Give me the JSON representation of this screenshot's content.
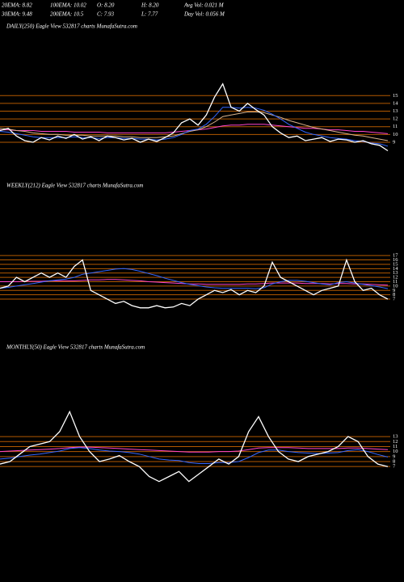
{
  "header": {
    "rows": [
      [
        "20EMA: 8.82",
        "100EMA: 10.02",
        "O: 8.20",
        "H: 8.20",
        "Avg Vol: 0.021 M"
      ],
      [
        "30EMA: 9.48",
        "200EMA: 10.5",
        "C: 7.93",
        "L: 7.77",
        "Day Vol: 0.056 M"
      ]
    ]
  },
  "chart_data": [
    {
      "type": "line",
      "title": "DAILY(250) Eagle  View  532817 charts MunafaSutra.com",
      "ylim": [
        6.5,
        16.9
      ],
      "yticks": [
        15,
        14,
        13,
        12,
        11,
        10,
        9
      ],
      "grid": true,
      "grid_color": "#b35900",
      "series": [
        {
          "color": "#ff44cc",
          "values": [
            10.6,
            10.6,
            10.5,
            10.5,
            10.5,
            10.4,
            10.4,
            10.4,
            10.4,
            10.3,
            10.3,
            10.3,
            10.3,
            10.2,
            10.2,
            10.2,
            10.2,
            10.2,
            10.2,
            10.2,
            10.2,
            10.3,
            10.4,
            10.5,
            10.6,
            10.7,
            10.9,
            11.1,
            11.2,
            11.2,
            11.3,
            11.3,
            11.3,
            11.2,
            11.1,
            11.0,
            10.9,
            10.8,
            10.8,
            10.7,
            10.6,
            10.6,
            10.5,
            10.4,
            10.4,
            10.3,
            10.2,
            10.1
          ]
        },
        {
          "color": "#d9b38c",
          "values": [
            10.8,
            10.7,
            10.5,
            10.4,
            10.2,
            10.1,
            10.0,
            10.0,
            9.9,
            9.9,
            9.9,
            9.8,
            9.8,
            9.8,
            9.8,
            9.7,
            9.7,
            9.6,
            9.6,
            9.6,
            9.7,
            9.8,
            10.1,
            10.4,
            10.6,
            11.0,
            11.6,
            12.3,
            12.5,
            12.7,
            12.9,
            12.9,
            12.8,
            12.5,
            12.2,
            11.8,
            11.5,
            11.2,
            10.9,
            10.7,
            10.5,
            10.3,
            10.1,
            9.9,
            9.8,
            9.6,
            9.4,
            9.2
          ]
        },
        {
          "color": "#3366ff",
          "values": [
            10.4,
            10.3,
            10.1,
            9.9,
            9.7,
            9.6,
            9.6,
            9.6,
            9.6,
            9.7,
            9.6,
            9.6,
            9.5,
            9.6,
            9.6,
            9.5,
            9.5,
            9.4,
            9.4,
            9.3,
            9.4,
            9.6,
            10.0,
            10.5,
            10.7,
            11.3,
            12.3,
            13.5,
            13.5,
            13.4,
            13.5,
            13.4,
            13.1,
            12.6,
            12.0,
            11.3,
            10.8,
            10.3,
            10.0,
            9.8,
            9.6,
            9.5,
            9.4,
            9.2,
            9.1,
            8.9,
            8.8,
            8.5
          ]
        },
        {
          "color": "#ffffff",
          "values": [
            10.5,
            10.8,
            9.8,
            9.2,
            9.0,
            9.6,
            9.3,
            9.8,
            9.5,
            10.0,
            9.4,
            9.7,
            9.2,
            9.8,
            9.6,
            9.3,
            9.5,
            9.0,
            9.4,
            9.1,
            9.6,
            10.2,
            11.5,
            12.0,
            11.2,
            12.5,
            14.8,
            16.5,
            13.5,
            13.0,
            14.0,
            13.2,
            12.5,
            11.0,
            10.2,
            9.6,
            9.8,
            9.2,
            9.4,
            9.6,
            9.1,
            9.4,
            9.3,
            9.0,
            9.2,
            8.8,
            8.6,
            7.9
          ]
        }
      ]
    },
    {
      "type": "line",
      "title": "WEEKLY(212) Eagle  View  532817 charts MunafaSutra.com",
      "ylim": [
        3.3,
        20
      ],
      "yticks": [
        17,
        16,
        15,
        14,
        13,
        12,
        11,
        10,
        9,
        8,
        7
      ],
      "grid": true,
      "grid_color": "#b35900",
      "series": [
        {
          "color": "#ff44cc",
          "values": [
            11.0,
            11.0,
            11.0,
            11.1,
            11.1,
            11.1,
            11.2,
            11.2,
            11.2,
            11.2,
            11.3,
            11.4,
            11.4,
            11.5,
            11.5,
            11.4,
            11.3,
            11.2,
            11.0,
            10.9,
            10.8,
            10.7,
            10.6,
            10.5,
            10.5,
            10.4,
            10.4,
            10.4,
            10.4,
            10.4,
            10.5,
            10.5,
            10.6,
            10.7,
            10.7,
            10.7,
            10.7,
            10.6,
            10.6,
            10.6,
            10.5,
            10.6,
            10.6,
            10.5,
            10.5,
            10.4,
            10.3,
            10.2
          ]
        },
        {
          "color": "#3366ff",
          "values": [
            9.5,
            9.7,
            10.0,
            10.3,
            10.6,
            10.9,
            11.2,
            11.4,
            11.6,
            12.0,
            12.7,
            13.0,
            13.3,
            13.6,
            13.9,
            14.0,
            13.8,
            13.4,
            12.9,
            12.4,
            11.8,
            11.3,
            10.8,
            10.4,
            10.1,
            9.8,
            9.6,
            9.5,
            9.5,
            9.5,
            9.5,
            9.4,
            9.6,
            10.5,
            11.0,
            11.3,
            11.3,
            11.1,
            10.8,
            10.5,
            10.3,
            10.8,
            11.0,
            10.7,
            10.4,
            10.1,
            9.8,
            9.4
          ]
        },
        {
          "color": "#ffffff",
          "values": [
            9.5,
            10.0,
            12.0,
            11.0,
            12.0,
            13.0,
            12.0,
            13.0,
            12.0,
            14.5,
            16.0,
            9.0,
            8.0,
            7.0,
            6.0,
            6.5,
            5.5,
            5.0,
            5.0,
            5.5,
            5.0,
            5.2,
            6.0,
            5.5,
            7.0,
            8.0,
            9.0,
            8.5,
            9.2,
            8.0,
            9.0,
            8.5,
            10.0,
            15.5,
            12.0,
            11.0,
            10.0,
            9.0,
            8.0,
            9.0,
            9.5,
            10.0,
            16.0,
            11.0,
            9.0,
            9.5,
            8.0,
            7.0
          ]
        }
      ]
    },
    {
      "type": "line",
      "title": "MONTHLY(50) Eagle  View  532817 charts MunafaSutra.com",
      "ylim": [
        3.3,
        19.5
      ],
      "yticks": [
        13,
        12,
        11,
        10,
        9,
        8,
        7
      ],
      "grid": true,
      "grid_color": "#b35900",
      "series": [
        {
          "color": "#ff44cc",
          "values": [
            10.0,
            10.1,
            10.2,
            10.3,
            10.4,
            10.5,
            10.6,
            10.8,
            10.9,
            10.9,
            10.8,
            10.7,
            10.6,
            10.5,
            10.4,
            10.3,
            10.2,
            10.1,
            10.0,
            9.9,
            9.9,
            9.9,
            10.0,
            10.0,
            10.1,
            10.4,
            10.7,
            10.8,
            10.8,
            10.8,
            10.7,
            10.6,
            10.6,
            10.6,
            10.6,
            10.7,
            10.7,
            10.6,
            10.5,
            10.4
          ]
        },
        {
          "color": "#3366ff",
          "values": [
            8.5,
            8.7,
            9.0,
            9.3,
            9.5,
            9.8,
            10.1,
            10.6,
            10.8,
            10.6,
            10.3,
            10.1,
            10.0,
            9.8,
            9.5,
            9.0,
            8.5,
            8.3,
            8.2,
            7.8,
            7.6,
            7.6,
            7.8,
            7.8,
            8.0,
            8.8,
            9.8,
            10.3,
            10.3,
            10.0,
            9.8,
            9.7,
            9.6,
            9.7,
            9.8,
            10.2,
            10.4,
            10.0,
            9.4,
            8.9
          ]
        },
        {
          "color": "#ffffff",
          "values": [
            7.5,
            8.0,
            9.5,
            11.0,
            11.5,
            12.0,
            14.0,
            18.0,
            13.0,
            10.0,
            8.0,
            8.5,
            9.2,
            8.0,
            7.0,
            5.0,
            4.0,
            5.0,
            6.0,
            4.0,
            5.5,
            7.0,
            8.5,
            7.5,
            9.0,
            14.0,
            17.0,
            13.0,
            10.0,
            8.5,
            8.0,
            9.0,
            9.5,
            10.0,
            11.0,
            13.0,
            12.0,
            9.0,
            7.5,
            7.0
          ]
        }
      ]
    }
  ]
}
